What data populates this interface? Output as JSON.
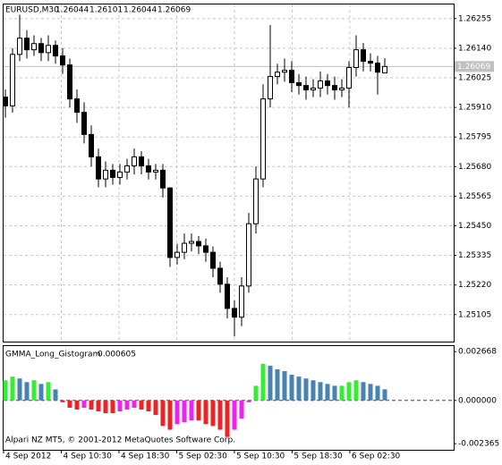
{
  "chart_data": [
    {
      "type": "candlestick",
      "symbol": "EURUSD,M30",
      "open": [
        1.2595,
        1.25916,
        1.26116,
        1.26179,
        1.26134,
        1.26158,
        1.26123,
        1.26151,
        1.2611,
        1.26075,
        1.25943,
        1.25891,
        1.25805,
        1.25718,
        1.25632,
        1.25666,
        1.25638,
        1.25659,
        1.25683,
        1.25718,
        1.25683,
        1.25659,
        1.25666,
        1.25597,
        1.25327,
        1.25347,
        1.25382,
        1.25389,
        1.25372,
        1.25347,
        1.25285,
        1.25223,
        1.25129,
        1.25095,
        1.25216,
        1.25458,
        1.25632,
        1.25943,
        1.2603,
        1.26047,
        1.26054,
        1.26006,
        1.25995,
        1.25978,
        1.25985,
        1.26013,
        1.25995,
        1.25978,
        1.25985,
        1.26065,
        1.26134,
        1.26089,
        1.26082,
        1.26044
      ],
      "high": [
        1.2598,
        1.2614,
        1.2627,
        1.2621,
        1.2619,
        1.2618,
        1.2619,
        1.2617,
        1.2614,
        1.261,
        1.2598,
        1.2593,
        1.2584,
        1.2575,
        1.257,
        1.2569,
        1.2569,
        1.2571,
        1.2575,
        1.2574,
        1.2571,
        1.2569,
        1.2569,
        1.256,
        1.2538,
        1.2542,
        1.2542,
        1.2541,
        1.254,
        1.2537,
        1.2531,
        1.2525,
        1.2516,
        1.2525,
        1.255,
        1.2568,
        1.26,
        1.2623,
        1.2608,
        1.261,
        1.2609,
        1.2604,
        1.2603,
        1.2602,
        1.2605,
        1.2604,
        1.2603,
        1.2602,
        1.2609,
        1.2619,
        1.2616,
        1.2612,
        1.2611,
        1.26101
      ],
      "low": [
        1.2587,
        1.2589,
        1.2609,
        1.261,
        1.2611,
        1.2609,
        1.2609,
        1.2608,
        1.2604,
        1.2591,
        1.2585,
        1.2577,
        1.2568,
        1.256,
        1.256,
        1.2561,
        1.2561,
        1.2563,
        1.2565,
        1.2565,
        1.2563,
        1.2563,
        1.2556,
        1.2529,
        1.253,
        1.2532,
        1.2535,
        1.2534,
        1.2531,
        1.2525,
        1.2519,
        1.2509,
        1.2502,
        1.2506,
        1.2519,
        1.2542,
        1.256,
        1.2591,
        1.26,
        1.2601,
        1.2597,
        1.2596,
        1.2594,
        1.2595,
        1.2595,
        1.2596,
        1.2594,
        1.2595,
        1.2591,
        1.2603,
        1.2605,
        1.2605,
        1.2596,
        1.26044
      ],
      "close": [
        1.25916,
        1.26116,
        1.26179,
        1.26134,
        1.26158,
        1.26123,
        1.26151,
        1.2611,
        1.26075,
        1.25943,
        1.25891,
        1.25805,
        1.25718,
        1.25632,
        1.25666,
        1.25638,
        1.25659,
        1.25683,
        1.25718,
        1.25683,
        1.25659,
        1.25666,
        1.25597,
        1.25327,
        1.25347,
        1.25382,
        1.25389,
        1.25372,
        1.25347,
        1.25285,
        1.25223,
        1.25129,
        1.25095,
        1.25216,
        1.25458,
        1.25632,
        1.25943,
        1.2603,
        1.26047,
        1.26054,
        1.26006,
        1.25995,
        1.25978,
        1.25985,
        1.26013,
        1.25995,
        1.25978,
        1.25985,
        1.26065,
        1.26134,
        1.26089,
        1.26082,
        1.26047,
        1.26069
      ],
      "ylim": [
        1.25,
        1.2631
      ],
      "yticks": [
        1.26255,
        {
          "value": 1.2614,
          "label": "1.26140"
        },
        1.26025,
        {
          "value": 1.2591,
          "label": "1.25910"
        },
        1.25795,
        {
          "value": 1.2568,
          "label": "1.25680"
        },
        1.25565,
        {
          "value": 1.2545,
          "label": "1.25450"
        },
        1.25335,
        {
          "value": 1.2522,
          "label": "1.25220"
        },
        1.25105
      ],
      "x_labels": [
        "4 Sep 2012",
        "4 Sep 10:30",
        "4 Sep 18:30",
        "5 Sep 02:30",
        "5 Sep 10:30",
        "5 Sep 18:30",
        "6 Sep 02:30"
      ],
      "grid": true,
      "color": "#000000",
      "price_line_color": "#c0c0c0"
    },
    {
      "type": "bar",
      "title": "GMMA_Long_Gistogram",
      "values": [
        0.0011,
        0.0013,
        0.0012,
        0.001,
        0.0011,
        0.0009,
        0.001,
        0.0006,
        -0.0001,
        -0.0004,
        -0.0005,
        -0.0004,
        -0.0005,
        -0.0006,
        -0.0007,
        -0.0007,
        -0.0006,
        -0.0005,
        -0.0004,
        -0.0005,
        -0.0006,
        -0.0008,
        -0.0014,
        -0.0016,
        -0.0013,
        -0.0012,
        -0.0011,
        -0.0011,
        -0.0013,
        -0.0014,
        -0.0016,
        -0.002,
        -0.0016,
        -0.001,
        -0.0001,
        0.0008,
        0.002,
        0.0019,
        0.0017,
        0.0016,
        0.0014,
        0.0013,
        0.0012,
        0.0011,
        0.001,
        0.0009,
        0.0008,
        0.0008,
        0.001,
        0.0011,
        0.001,
        0.0009,
        0.0008,
        0.000605
      ],
      "ylim": [
        -0.0027,
        0.00297
      ],
      "yticks": [
        0.002668,
        {
          "value": 0,
          "label": "0.000000"
        },
        -0.002365
      ],
      "palette": {
        "rise_positive": "#33ee33",
        "fall_positive": "#4682b4",
        "fall_negative": "#ee2222",
        "rise_negative": "#ee22ee"
      },
      "zero_line_color": "#3333cc"
    }
  ],
  "footer": "Alpari NZ MT5, © 2001-2012 MetaQuotes Software Corp."
}
